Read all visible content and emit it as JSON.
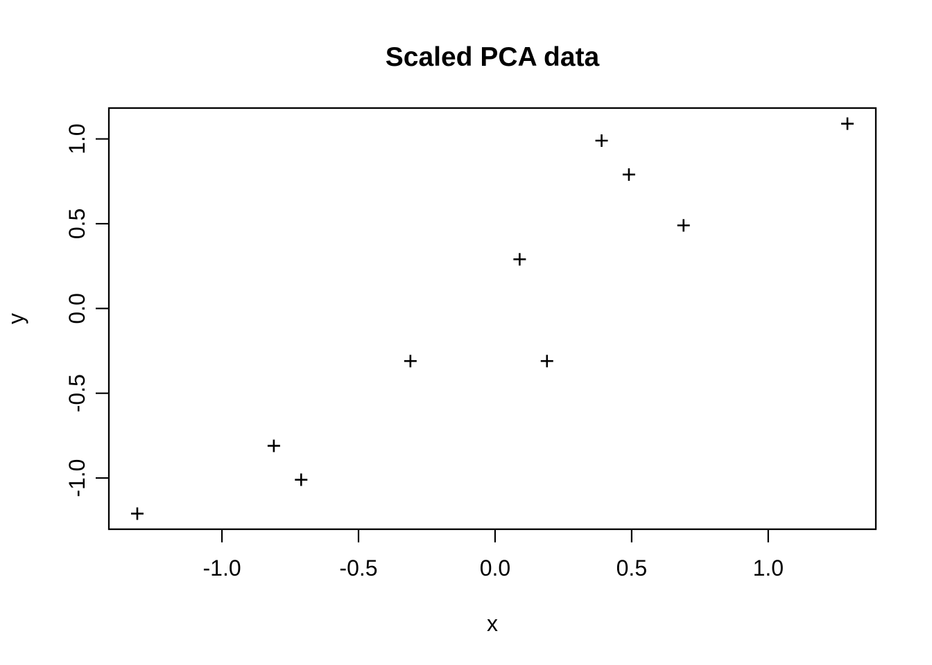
{
  "chart_data": {
    "type": "scatter",
    "title": "Scaled PCA data",
    "xlabel": "x",
    "ylabel": "y",
    "marker": "plus",
    "marker_color": "#000000",
    "background_color": "#ffffff",
    "axis_color": "#000000",
    "grid": false,
    "legend": "none",
    "points": [
      {
        "x": 0.69,
        "y": 0.49
      },
      {
        "x": -1.31,
        "y": -1.21
      },
      {
        "x": 0.39,
        "y": 0.99
      },
      {
        "x": 0.09,
        "y": 0.29
      },
      {
        "x": 1.29,
        "y": 1.09
      },
      {
        "x": 0.49,
        "y": 0.79
      },
      {
        "x": 0.19,
        "y": -0.31
      },
      {
        "x": -0.81,
        "y": -0.81
      },
      {
        "x": -0.31,
        "y": -0.31
      },
      {
        "x": -0.71,
        "y": -1.01
      }
    ],
    "xlim": [
      -1.414,
      1.394
    ],
    "ylim": [
      -1.302,
      1.182
    ],
    "xticks": {
      "values": [
        -1.0,
        -0.5,
        0.0,
        0.5,
        1.0
      ],
      "labels": [
        "-1.0",
        "-0.5",
        "0.0",
        "0.5",
        "1.0"
      ]
    },
    "yticks": {
      "values": [
        -1.0,
        -0.5,
        0.0,
        0.5,
        1.0
      ],
      "labels": [
        "-1.0",
        "-0.5",
        "0.0",
        "0.5",
        "1.0"
      ]
    }
  }
}
